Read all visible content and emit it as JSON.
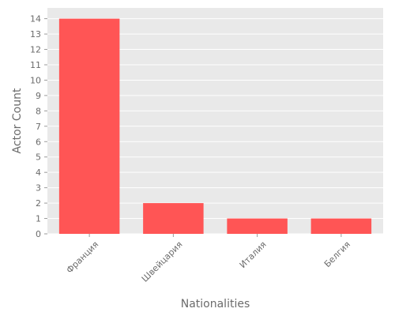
{
  "chart_data": {
    "type": "bar",
    "categories": [
      "Франция",
      "Швейцария",
      "Италия",
      "Белгия"
    ],
    "values": [
      14,
      2,
      1,
      1
    ],
    "title": "",
    "xlabel": "Nationalities",
    "ylabel": "Actor Count",
    "ylim": [
      0,
      14.7
    ],
    "yticks": [
      0,
      1,
      2,
      3,
      4,
      5,
      6,
      7,
      8,
      9,
      10,
      11,
      12,
      13,
      14
    ],
    "grid": true,
    "legend": "none",
    "colors": {
      "bar": "#ff5555",
      "panel_background": "#e9e9e9",
      "grid": "#ffffff",
      "text": "#6b6b6b"
    }
  }
}
